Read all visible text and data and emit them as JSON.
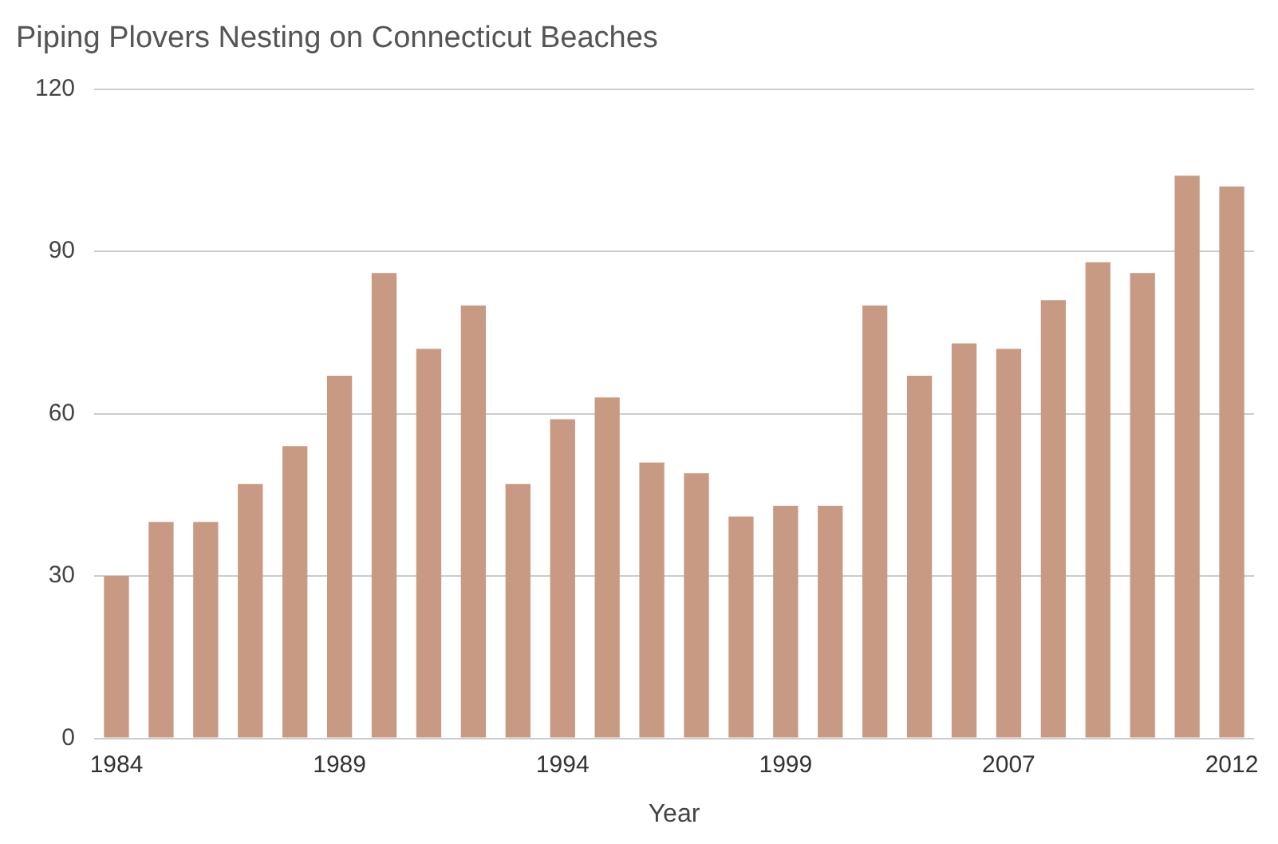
{
  "chart_data": {
    "type": "bar",
    "title": "Piping Plovers Nesting on Connecticut Beaches",
    "xlabel": "Year",
    "categories": [
      "1984",
      null,
      null,
      null,
      null,
      "1989",
      null,
      null,
      null,
      null,
      "1994",
      null,
      null,
      null,
      null,
      "1999",
      null,
      null,
      null,
      null,
      "2007",
      null,
      null,
      null,
      null,
      "2012"
    ],
    "values": [
      30,
      40,
      40,
      47,
      54,
      67,
      86,
      72,
      80,
      47,
      59,
      63,
      51,
      49,
      41,
      43,
      43,
      80,
      67,
      73,
      72,
      81,
      88,
      86,
      104,
      102
    ],
    "color": "#c99a83",
    "ylim": [
      0,
      120
    ],
    "yticks": [
      0,
      30,
      60,
      90,
      120
    ],
    "grid": "y",
    "legend": false
  }
}
